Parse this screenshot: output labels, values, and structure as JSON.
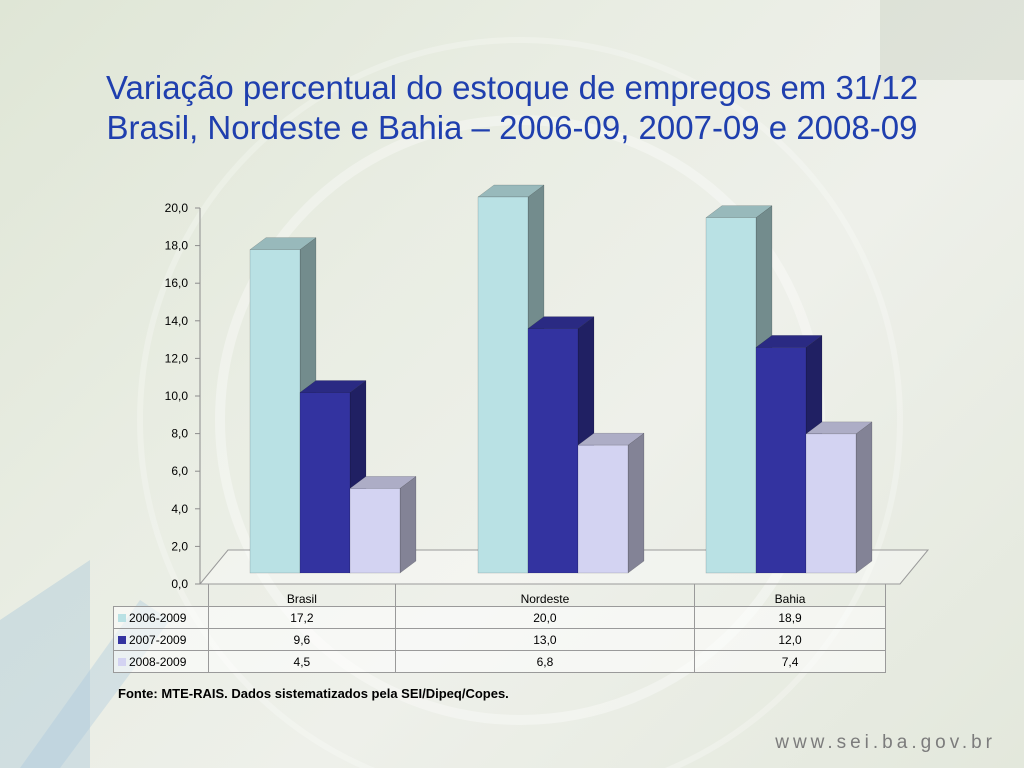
{
  "slide": {
    "title_line1": "Variação percentual do estoque de empregos em 31/12",
    "title_line2": "Brasil, Nordeste e Bahia – 2006-09, 2007-09 e 2008-09",
    "source": "Fonte: MTE-RAIS. Dados sistematizados pela SEI/Dipeq/Copes.",
    "website": "www.sei.ba.gov.br"
  },
  "chart_data": {
    "type": "bar",
    "style": "3d-clustered",
    "categories": [
      "Brasil",
      "Nordeste",
      "Bahia"
    ],
    "series": [
      {
        "name": "2006-2009",
        "values": [
          17.2,
          20.0,
          18.9
        ],
        "labels": [
          "17,2",
          "20,0",
          "18,9"
        ],
        "color": "#b9e1e4"
      },
      {
        "name": "2007-2009",
        "values": [
          9.6,
          13.0,
          12.0
        ],
        "labels": [
          "9,6",
          "13,0",
          "12,0"
        ],
        "color": "#3333a0"
      },
      {
        "name": "2008-2009",
        "values": [
          4.5,
          6.8,
          7.4
        ],
        "labels": [
          "4,5",
          "6,8",
          "7,4"
        ],
        "color": "#d3d3f2"
      }
    ],
    "ylim": [
      0,
      20
    ],
    "yticks": [
      "0,0",
      "2,0",
      "4,0",
      "6,0",
      "8,0",
      "10,0",
      "12,0",
      "14,0",
      "16,0",
      "18,0",
      "20,0"
    ],
    "legend": "data-table-below"
  }
}
